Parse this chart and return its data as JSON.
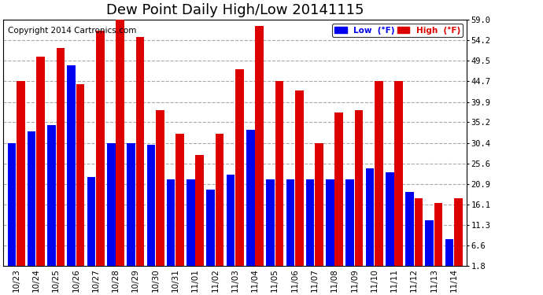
{
  "title": "Dew Point Daily High/Low 20141115",
  "copyright": "Copyright 2014 Cartronics.com",
  "dates": [
    "10/23",
    "10/24",
    "10/25",
    "10/26",
    "10/27",
    "10/28",
    "10/29",
    "10/30",
    "10/31",
    "11/01",
    "11/02",
    "11/03",
    "11/04",
    "11/05",
    "11/06",
    "11/07",
    "11/08",
    "11/09",
    "11/10",
    "11/11",
    "11/12",
    "11/13",
    "11/14"
  ],
  "low_values": [
    30.4,
    33.0,
    34.5,
    48.5,
    22.5,
    30.4,
    30.4,
    30.0,
    22.0,
    22.0,
    19.5,
    23.0,
    33.5,
    22.0,
    22.0,
    22.0,
    22.0,
    22.0,
    24.5,
    23.5,
    19.0,
    12.5,
    8.0
  ],
  "high_values": [
    44.7,
    50.5,
    52.5,
    44.0,
    56.5,
    59.0,
    55.0,
    38.0,
    32.5,
    27.5,
    32.5,
    47.5,
    57.5,
    44.7,
    42.5,
    30.4,
    37.5,
    38.0,
    44.7,
    44.7,
    17.5,
    16.5,
    17.5
  ],
  "low_color": "#0000ee",
  "high_color": "#dd0000",
  "bg_color": "#ffffff",
  "plot_bg_color": "#ffffff",
  "yticks": [
    1.8,
    6.6,
    11.3,
    16.1,
    20.9,
    25.6,
    30.4,
    35.2,
    39.9,
    44.7,
    49.5,
    54.2,
    59.0
  ],
  "ymin": 1.8,
  "ymax": 59.0,
  "title_fontsize": 13,
  "copyright_fontsize": 7.5,
  "legend_low_label": "Low  (°F)",
  "legend_high_label": "High  (°F)"
}
